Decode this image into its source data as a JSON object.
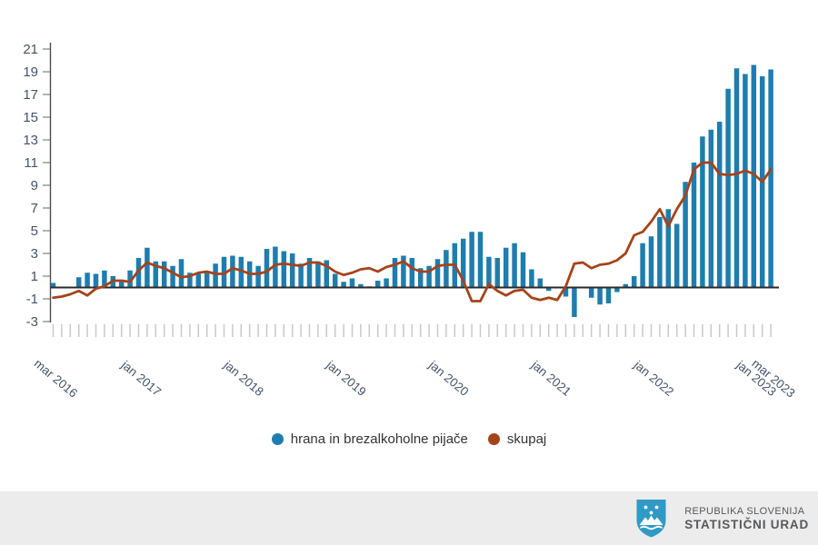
{
  "chart_data": {
    "type": "bar",
    "title": "",
    "unit": "%",
    "frequency": "monthly",
    "x_start": "mar 2016",
    "x_end": "mar 2023",
    "grid": false,
    "legend_position": "bottom",
    "ylim": [
      -3.8,
      21.8
    ],
    "y_ticks": [
      21,
      19,
      17,
      15,
      13,
      11,
      9,
      7,
      5,
      3,
      1,
      -1,
      -3
    ],
    "x_tick_labels": [
      {
        "label": "mar 2016",
        "index": 0
      },
      {
        "label": "jan 2017",
        "index": 10
      },
      {
        "label": "jan 2018",
        "index": 22
      },
      {
        "label": "jan 2019",
        "index": 34
      },
      {
        "label": "jan 2020",
        "index": 46
      },
      {
        "label": "jan 2021",
        "index": 58
      },
      {
        "label": "jan 2022",
        "index": 70
      },
      {
        "label": "jan 2023",
        "index": 82
      },
      {
        "label": "mar 2023",
        "index": 84
      }
    ],
    "months": [
      "mar 2016",
      "apr 2016",
      "maj 2016",
      "jun 2016",
      "jul 2016",
      "avg 2016",
      "sep 2016",
      "okt 2016",
      "nov 2016",
      "dec 2016",
      "jan 2017",
      "feb 2017",
      "mar 2017",
      "apr 2017",
      "maj 2017",
      "jun 2017",
      "jul 2017",
      "avg 2017",
      "sep 2017",
      "okt 2017",
      "nov 2017",
      "dec 2017",
      "jan 2018",
      "feb 2018",
      "mar 2018",
      "apr 2018",
      "maj 2018",
      "jun 2018",
      "jul 2018",
      "avg 2018",
      "sep 2018",
      "okt 2018",
      "nov 2018",
      "dec 2018",
      "jan 2019",
      "feb 2019",
      "mar 2019",
      "apr 2019",
      "maj 2019",
      "jun 2019",
      "jul 2019",
      "avg 2019",
      "sep 2019",
      "okt 2019",
      "nov 2019",
      "dec 2019",
      "jan 2020",
      "feb 2020",
      "mar 2020",
      "apr 2020",
      "maj 2020",
      "jun 2020",
      "jul 2020",
      "avg 2020",
      "sep 2020",
      "okt 2020",
      "nov 2020",
      "dec 2020",
      "jan 2021",
      "feb 2021",
      "mar 2021",
      "apr 2021",
      "maj 2021",
      "jun 2021",
      "jul 2021",
      "avg 2021",
      "sep 2021",
      "okt 2021",
      "nov 2021",
      "dec 2021",
      "jan 2022",
      "feb 2022",
      "mar 2022",
      "apr 2022",
      "maj 2022",
      "jun 2022",
      "jul 2022",
      "avg 2022",
      "sep 2022",
      "okt 2022",
      "nov 2022",
      "dec 2022",
      "jan 2023",
      "feb 2023",
      "mar 2023"
    ],
    "series": [
      {
        "name": "hrana in brezalkoholne pijače",
        "type": "bar",
        "color": "#1e7dae",
        "values": [
          0.4,
          0.0,
          0.0,
          0.9,
          1.3,
          1.2,
          1.5,
          1.0,
          0.7,
          1.5,
          2.6,
          3.5,
          2.3,
          2.3,
          1.9,
          2.5,
          1.3,
          1.2,
          1.4,
          2.1,
          2.7,
          2.8,
          2.7,
          2.3,
          1.9,
          3.4,
          3.6,
          3.2,
          3.0,
          2.1,
          2.6,
          2.3,
          2.4,
          1.2,
          0.5,
          0.8,
          0.3,
          0.1,
          0.6,
          0.8,
          2.6,
          2.8,
          2.6,
          1.7,
          1.9,
          2.5,
          3.3,
          3.9,
          4.3,
          4.9,
          4.9,
          2.7,
          2.6,
          3.5,
          3.9,
          3.1,
          1.6,
          0.8,
          -0.3,
          0.0,
          -0.8,
          -2.6,
          0.0,
          -0.9,
          -1.5,
          -1.4,
          -0.4,
          0.3,
          1.0,
          3.9,
          4.5,
          6.2,
          6.9,
          5.6,
          9.3,
          11.0,
          13.3,
          13.9,
          14.6,
          17.5,
          19.3,
          18.8,
          19.6,
          18.6,
          19.2
        ]
      },
      {
        "name": "skupaj",
        "type": "line",
        "color": "#a5431a",
        "values": [
          -0.9,
          -0.8,
          -0.6,
          -0.3,
          -0.7,
          -0.1,
          0.1,
          0.6,
          0.6,
          0.5,
          1.5,
          2.2,
          1.9,
          1.7,
          1.3,
          0.9,
          1.0,
          1.3,
          1.4,
          1.2,
          1.2,
          1.7,
          1.5,
          1.2,
          1.2,
          1.4,
          2.0,
          2.1,
          2.0,
          1.9,
          2.2,
          2.2,
          1.9,
          1.4,
          1.1,
          1.3,
          1.6,
          1.7,
          1.4,
          1.8,
          2.0,
          2.3,
          1.7,
          1.4,
          1.4,
          1.9,
          2.0,
          2.0,
          0.6,
          -1.2,
          -1.2,
          0.3,
          -0.3,
          -0.7,
          -0.3,
          -0.2,
          -0.9,
          -1.1,
          -0.9,
          -1.1,
          0.1,
          2.1,
          2.2,
          1.7,
          2.0,
          2.1,
          2.4,
          3.0,
          4.6,
          4.9,
          5.8,
          6.9,
          5.4,
          6.9,
          8.1,
          10.4,
          11.0,
          11.0,
          10.0,
          9.9,
          10.0,
          10.3,
          10.0,
          9.3,
          10.4
        ]
      }
    ]
  },
  "legend": {
    "items": [
      {
        "label": "hrana in brezalkoholne pijače",
        "color": "#1e7dae"
      },
      {
        "label": "skupaj",
        "color": "#a5431a"
      }
    ]
  },
  "footer": {
    "line1": "REPUBLIKA SLOVENIJA",
    "line2": "STATISTIČNI URAD"
  },
  "colors": {
    "bar": "#1e7dae",
    "line": "#a5431a",
    "axis_labels": "#44546a",
    "axis_line": "#2b2b2b",
    "month_ticks": "#c9c9c9",
    "footer_bg": "#ececec",
    "logo_blue": "#2f9ac5"
  }
}
